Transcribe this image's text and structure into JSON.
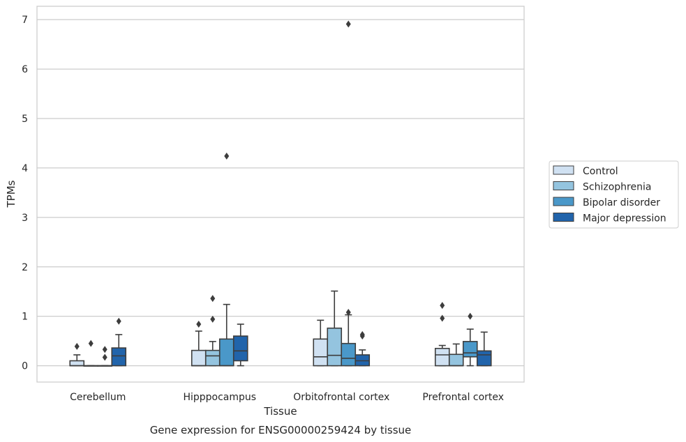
{
  "chart_data": {
    "type": "box",
    "caption": "Gene expression for ENSG00000259424 by tissue",
    "xlabel": "Tissue",
    "ylabel": "TPMs",
    "ylim": [
      -0.33,
      7.27
    ],
    "yticks": [
      0,
      1,
      2,
      3,
      4,
      5,
      6,
      7
    ],
    "grid": true,
    "legend_position": "right",
    "categories": [
      "Cerebellum",
      "Hipppocampus",
      "Orbitofrontal cortex",
      "Prefrontal cortex"
    ],
    "series": [
      {
        "name": "Control",
        "color": "#d0e1f2",
        "boxes": [
          {
            "q1": 0.0,
            "median": 0.0,
            "q3": 0.1,
            "wlo": 0.0,
            "whi": 0.22,
            "outliers": [
              0.39
            ]
          },
          {
            "q1": 0.0,
            "median": 0.0,
            "q3": 0.31,
            "wlo": 0.0,
            "whi": 0.7,
            "outliers": [
              0.84
            ]
          },
          {
            "q1": 0.0,
            "median": 0.18,
            "q3": 0.54,
            "wlo": 0.0,
            "whi": 0.92,
            "outliers": []
          },
          {
            "q1": 0.0,
            "median": 0.22,
            "q3": 0.35,
            "wlo": 0.0,
            "whi": 0.41,
            "outliers": [
              0.96,
              1.22
            ]
          }
        ]
      },
      {
        "name": "Schizophrenia",
        "color": "#94c4df",
        "boxes": [
          {
            "q1": 0.0,
            "median": 0.0,
            "q3": 0.0,
            "wlo": 0.0,
            "whi": 0.0,
            "outliers": [
              0.45
            ]
          },
          {
            "q1": 0.0,
            "median": 0.2,
            "q3": 0.31,
            "wlo": 0.0,
            "whi": 0.49,
            "outliers": [
              0.94,
              1.36
            ]
          },
          {
            "q1": 0.0,
            "median": 0.21,
            "q3": 0.76,
            "wlo": 0.0,
            "whi": 1.51,
            "outliers": []
          },
          {
            "q1": 0.0,
            "median": 0.0,
            "q3": 0.23,
            "wlo": 0.0,
            "whi": 0.44,
            "outliers": []
          }
        ]
      },
      {
        "name": "Bipolar disorder",
        "color": "#4a98c9",
        "boxes": [
          {
            "q1": 0.0,
            "median": 0.0,
            "q3": 0.0,
            "wlo": 0.0,
            "whi": 0.0,
            "outliers": [
              0.17,
              0.33
            ]
          },
          {
            "q1": 0.0,
            "median": 0.0,
            "q3": 0.54,
            "wlo": 0.0,
            "whi": 1.24,
            "outliers": [
              4.24
            ]
          },
          {
            "q1": 0.0,
            "median": 0.15,
            "q3": 0.45,
            "wlo": 0.0,
            "whi": 1.03,
            "outliers": [
              1.08,
              6.91
            ]
          },
          {
            "q1": 0.18,
            "median": 0.26,
            "q3": 0.49,
            "wlo": 0.0,
            "whi": 0.74,
            "outliers": [
              1.0
            ]
          }
        ]
      },
      {
        "name": "Major depression",
        "color": "#2164ab",
        "boxes": [
          {
            "q1": 0.0,
            "median": 0.2,
            "q3": 0.36,
            "wlo": 0.0,
            "whi": 0.63,
            "outliers": [
              0.9
            ]
          },
          {
            "q1": 0.1,
            "median": 0.3,
            "q3": 0.6,
            "wlo": 0.0,
            "whi": 0.84,
            "outliers": []
          },
          {
            "q1": 0.0,
            "median": 0.1,
            "q3": 0.22,
            "wlo": 0.0,
            "whi": 0.32,
            "outliers": [
              0.6,
              0.63
            ]
          },
          {
            "q1": 0.0,
            "median": 0.22,
            "q3": 0.3,
            "wlo": 0.0,
            "whi": 0.68,
            "outliers": []
          }
        ]
      }
    ]
  }
}
